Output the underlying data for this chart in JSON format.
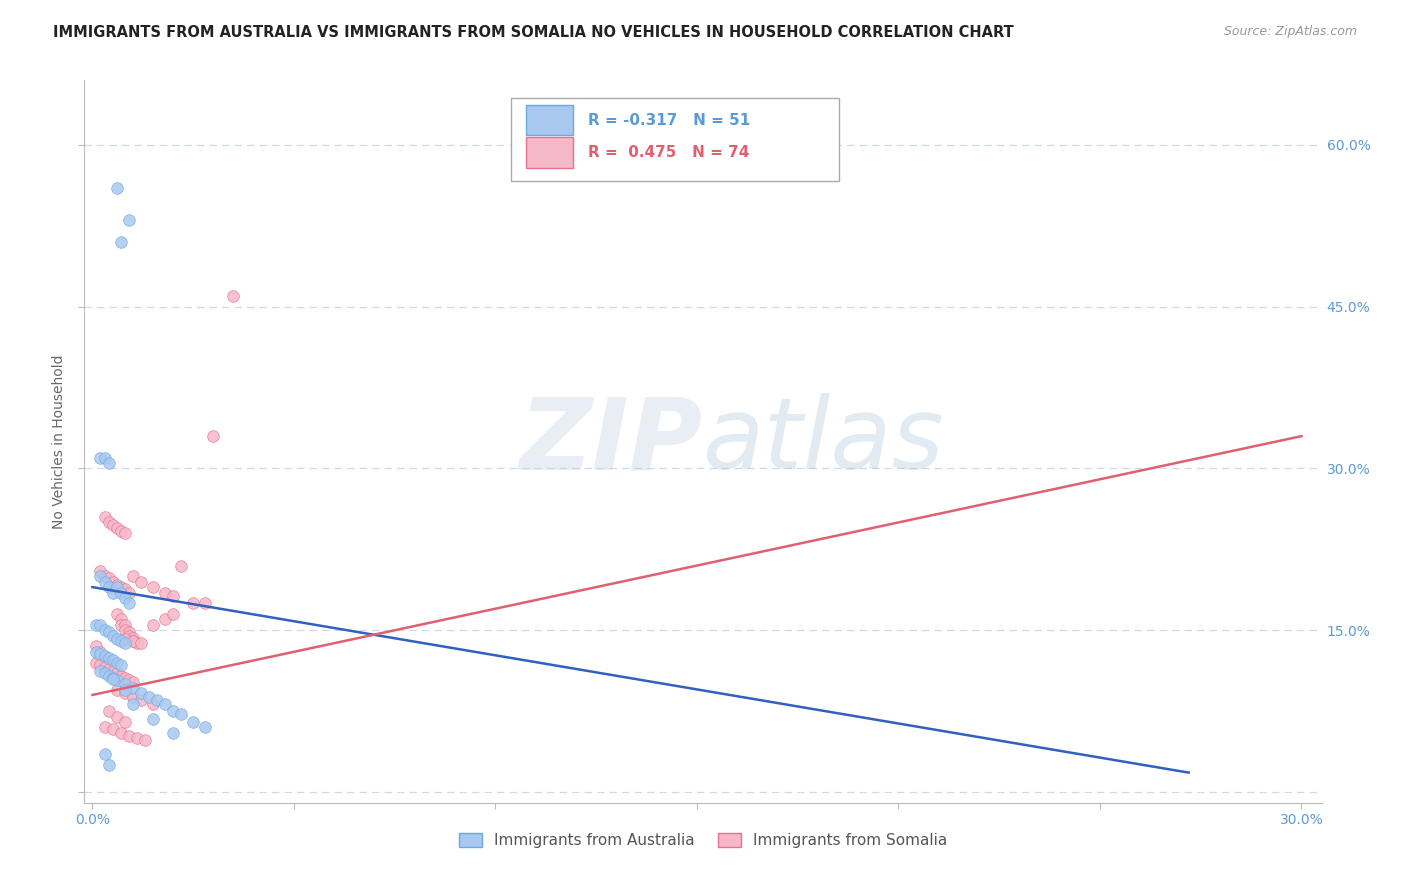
{
  "title": "IMMIGRANTS FROM AUSTRALIA VS IMMIGRANTS FROM SOMALIA NO VEHICLES IN HOUSEHOLD CORRELATION CHART",
  "source": "Source: ZipAtlas.com",
  "ylabel": "No Vehicles in Household",
  "yticks": [
    0.0,
    0.15,
    0.3,
    0.45,
    0.6
  ],
  "ytick_labels": [
    "",
    "15.0%",
    "30.0%",
    "45.0%",
    "60.0%"
  ],
  "xticks": [
    0.0,
    0.05,
    0.1,
    0.15,
    0.2,
    0.25,
    0.3
  ],
  "xtick_labels": [
    "0.0%",
    "",
    "",
    "",
    "",
    "",
    "30.0%"
  ],
  "xlim": [
    -0.002,
    0.305
  ],
  "ylim": [
    -0.01,
    0.66
  ],
  "scatter_australia": {
    "color": "#a8c8f0",
    "edge_color": "#6aaade",
    "alpha": 0.85,
    "size": 70,
    "x": [
      0.006,
      0.009,
      0.007,
      0.002,
      0.003,
      0.004,
      0.002,
      0.003,
      0.004,
      0.005,
      0.006,
      0.007,
      0.008,
      0.009,
      0.001,
      0.002,
      0.003,
      0.004,
      0.005,
      0.006,
      0.007,
      0.008,
      0.001,
      0.002,
      0.003,
      0.004,
      0.005,
      0.006,
      0.007,
      0.002,
      0.003,
      0.004,
      0.005,
      0.006,
      0.008,
      0.01,
      0.012,
      0.014,
      0.016,
      0.018,
      0.02,
      0.022,
      0.025,
      0.028,
      0.005,
      0.008,
      0.01,
      0.015,
      0.02,
      0.003,
      0.004
    ],
    "y": [
      0.56,
      0.53,
      0.51,
      0.31,
      0.31,
      0.305,
      0.2,
      0.195,
      0.19,
      0.185,
      0.19,
      0.185,
      0.18,
      0.175,
      0.155,
      0.155,
      0.15,
      0.148,
      0.145,
      0.142,
      0.14,
      0.138,
      0.13,
      0.128,
      0.126,
      0.124,
      0.122,
      0.12,
      0.118,
      0.112,
      0.11,
      0.108,
      0.106,
      0.104,
      0.1,
      0.096,
      0.092,
      0.088,
      0.085,
      0.082,
      0.075,
      0.072,
      0.065,
      0.06,
      0.105,
      0.095,
      0.082,
      0.068,
      0.055,
      0.035,
      0.025
    ]
  },
  "scatter_somalia": {
    "color": "#f5b8c8",
    "edge_color": "#e87090",
    "alpha": 0.85,
    "size": 70,
    "x": [
      0.001,
      0.002,
      0.002,
      0.003,
      0.003,
      0.004,
      0.004,
      0.005,
      0.005,
      0.006,
      0.006,
      0.007,
      0.007,
      0.008,
      0.008,
      0.009,
      0.009,
      0.01,
      0.01,
      0.011,
      0.001,
      0.002,
      0.003,
      0.004,
      0.005,
      0.006,
      0.007,
      0.008,
      0.009,
      0.01,
      0.002,
      0.003,
      0.004,
      0.005,
      0.006,
      0.007,
      0.008,
      0.009,
      0.003,
      0.004,
      0.005,
      0.006,
      0.007,
      0.008,
      0.01,
      0.012,
      0.015,
      0.018,
      0.02,
      0.025,
      0.028,
      0.03,
      0.022,
      0.035,
      0.008,
      0.01,
      0.012,
      0.015,
      0.018,
      0.02,
      0.006,
      0.008,
      0.01,
      0.012,
      0.015,
      0.004,
      0.006,
      0.008,
      0.003,
      0.005,
      0.007,
      0.009,
      0.011,
      0.013
    ],
    "y": [
      0.135,
      0.13,
      0.125,
      0.125,
      0.12,
      0.12,
      0.115,
      0.115,
      0.11,
      0.11,
      0.165,
      0.16,
      0.155,
      0.155,
      0.15,
      0.148,
      0.145,
      0.143,
      0.14,
      0.138,
      0.12,
      0.118,
      0.116,
      0.114,
      0.112,
      0.11,
      0.108,
      0.106,
      0.104,
      0.102,
      0.205,
      0.2,
      0.198,
      0.195,
      0.192,
      0.19,
      0.188,
      0.185,
      0.255,
      0.25,
      0.248,
      0.245,
      0.242,
      0.24,
      0.2,
      0.195,
      0.19,
      0.185,
      0.182,
      0.175,
      0.175,
      0.33,
      0.21,
      0.46,
      0.142,
      0.14,
      0.138,
      0.155,
      0.16,
      0.165,
      0.095,
      0.092,
      0.088,
      0.085,
      0.082,
      0.075,
      0.07,
      0.065,
      0.06,
      0.058,
      0.055,
      0.052,
      0.05,
      0.048
    ]
  },
  "trend_australia": {
    "color": "#3060c0",
    "linewidth": 1.8,
    "x": [
      0.0,
      0.272
    ],
    "y": [
      0.19,
      0.018
    ]
  },
  "trend_somalia": {
    "color": "#e06070",
    "linewidth": 1.8,
    "x": [
      0.0,
      0.3
    ],
    "y": [
      0.09,
      0.33
    ]
  },
  "watermark_zip": "ZIP",
  "watermark_atlas": "atlas",
  "background_color": "#ffffff",
  "grid_color": "#d0d8e8",
  "title_color": "#222222",
  "axis_label_color": "#5b9bd5",
  "ylabel_color": "#666666",
  "legend_r1": "R = -0.317   N = 51",
  "legend_r2": "R =  0.475   N = 74",
  "legend_box_color": "#a8c8f0",
  "legend_box2_color": "#f5b8c8",
  "legend_label_australia": "Immigrants from Australia",
  "legend_label_somalia": "Immigrants from Somalia"
}
